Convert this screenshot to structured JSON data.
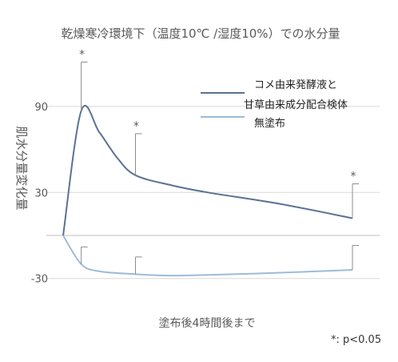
{
  "chart_data": {
    "type": "line",
    "title": "乾燥寒冷環境下（温度10℃ /湿度10%）での水分量",
    "xlabel": "塗布後4時間後まで",
    "ylabel": "肌水分量変化量",
    "yticks": [
      "90",
      "30",
      "-30"
    ],
    "ylim": [
      -35,
      125
    ],
    "x_range": [
      0,
      4
    ],
    "grid": true,
    "legend_position": "top-right",
    "legend": {
      "treated_line1": "コメ由来発酵液と",
      "treated_line2": "甘草由来成分配合検体",
      "control": "無塗布"
    },
    "significance_marker": "*",
    "footnote": "*: p<0.05",
    "series": [
      {
        "key": "treated",
        "color": "#5b7294",
        "x": [
          0,
          0.25,
          0.5,
          0.75,
          1,
          1.5,
          2,
          3,
          4
        ],
        "y": [
          0,
          87,
          72,
          54,
          42,
          35,
          30,
          22,
          12
        ],
        "errors": [
          {
            "x": 0.25,
            "mean": 87,
            "upper": 121
          },
          {
            "x": 1,
            "mean": 42,
            "upper": 71
          },
          {
            "x": 4,
            "mean": 12,
            "upper": 36
          }
        ]
      },
      {
        "key": "control",
        "color": "#9cbcd8",
        "x": [
          0,
          0.25,
          0.5,
          1,
          1.5,
          2,
          3,
          4
        ],
        "y": [
          0,
          -20,
          -25,
          -27,
          -28,
          -27.5,
          -26,
          -24
        ],
        "errors": [
          {
            "x": 0.25,
            "mean": -20,
            "upper": -8
          },
          {
            "x": 1,
            "mean": -27,
            "upper": -15
          },
          {
            "x": 4,
            "mean": -24,
            "upper": -7
          }
        ]
      }
    ]
  }
}
